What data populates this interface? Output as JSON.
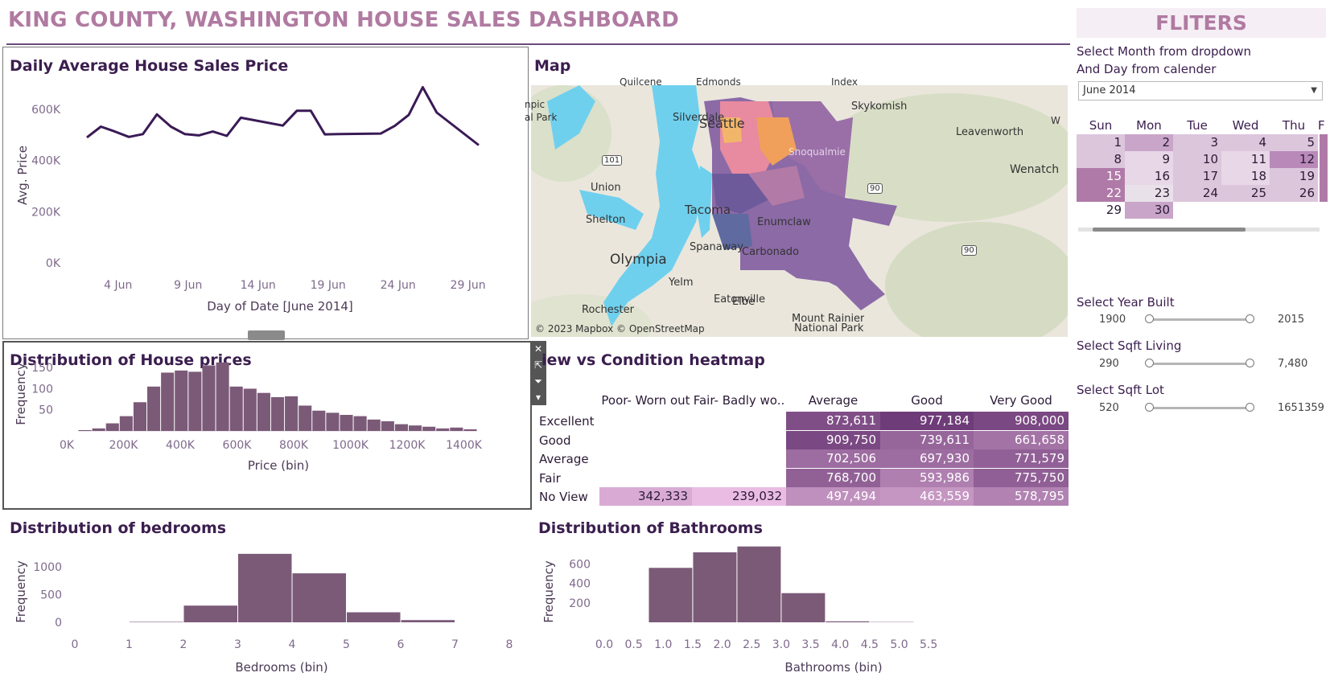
{
  "dashboard_title": "KING COUNTY, WASHINGTON HOUSE SALES DASHBOARD",
  "colors": {
    "accent": "#b07aa1",
    "dark": "#3b1e4f",
    "bar": "#7b5a78",
    "line": "#3a1a56"
  },
  "daily_chart": {
    "title": "Daily Average House Sales Price",
    "ylabel": "Avg. Price",
    "xlabel": "Day of Date [June 2014]",
    "y_ticks": [
      "600K",
      "400K",
      "200K",
      "0K"
    ],
    "x_ticks": [
      "4 Jun",
      "9 Jun",
      "14 Jun",
      "19 Jun",
      "24 Jun",
      "29 Jun"
    ]
  },
  "map": {
    "title": "Map",
    "attribution": "© 2023 Mapbox © OpenStreetMap",
    "places": [
      "Quilcene",
      "Edmonds",
      "Index",
      "Silverdale",
      "Seattle",
      "Skykomish",
      "Leavenworth",
      "Wenatchee",
      "Union",
      "Tacoma",
      "Enumclaw",
      "Shelton",
      "Spanaway",
      "Carbonado",
      "Olympia",
      "Yelm",
      "Eatonville",
      "Rochester",
      "Elbe",
      "Mount Rainier",
      "National Park",
      "npic",
      "al Park",
      "W",
      "101",
      "90",
      "90",
      "Snoqualmie"
    ]
  },
  "price_dist": {
    "title": "Distribution of House prices",
    "ylabel": "Frequency",
    "xlabel": "Price (bin)",
    "y_ticks": [
      "150",
      "100",
      "50"
    ],
    "x_ticks": [
      "0K",
      "200K",
      "400K",
      "600K",
      "800K",
      "1000K",
      "1200K",
      "1400K"
    ]
  },
  "heatmap": {
    "title": "View vs Condition heatmap",
    "title_visible": "iew vs Condition heatmap",
    "columns": [
      "Poor- Worn out",
      "Fair- Badly wo..",
      "Average",
      "Good",
      "Very Good"
    ],
    "rows": [
      {
        "label": "Excellent",
        "values": [
          "",
          "",
          "873,611",
          "977,184",
          "908,000"
        ]
      },
      {
        "label": "Good",
        "values": [
          "",
          "",
          "909,750",
          "739,611",
          "661,658"
        ]
      },
      {
        "label": "Average",
        "values": [
          "",
          "",
          "702,506",
          "697,930",
          "771,579"
        ]
      },
      {
        "label": "Fair",
        "values": [
          "",
          "",
          "768,700",
          "593,986",
          "775,750"
        ]
      },
      {
        "label": "No View",
        "values": [
          "342,333",
          "239,032",
          "497,494",
          "463,559",
          "578,795"
        ]
      }
    ]
  },
  "bedrooms": {
    "title": "Distribution of bedrooms",
    "ylabel": "Frequency",
    "xlabel": "Bedrooms (bin)",
    "y_ticks": [
      "1000",
      "500",
      "0"
    ],
    "x_ticks": [
      "0",
      "1",
      "2",
      "3",
      "4",
      "5",
      "6",
      "7",
      "8"
    ]
  },
  "bathrooms": {
    "title": "Distribution of Bathrooms",
    "ylabel": "Frequency",
    "xlabel": "Bathrooms (bin)",
    "y_ticks": [
      "600",
      "400",
      "200"
    ],
    "x_ticks": [
      "0.0",
      "0.5",
      "1.0",
      "1.5",
      "2.0",
      "2.5",
      "3.0",
      "3.5",
      "4.0",
      "4.5",
      "5.0",
      "5.5"
    ]
  },
  "filters": {
    "title": "FLITERS",
    "instruction_1": "Select Month from dropdown",
    "instruction_2": "And Day from calender",
    "month_value": "June 2014",
    "weekdays": [
      "Sun",
      "Mon",
      "Tue",
      "Wed",
      "Thu",
      "F"
    ],
    "calendar_days": [
      "1",
      "2",
      "3",
      "4",
      "5",
      "8",
      "9",
      "10",
      "11",
      "12",
      "15",
      "16",
      "17",
      "18",
      "19",
      "22",
      "23",
      "24",
      "25",
      "26",
      "29",
      "30"
    ],
    "year_built": {
      "label": "Select Year Built",
      "min": "1900",
      "max": "2015"
    },
    "sqft_living": {
      "label": "Select Sqft Living",
      "min": "290",
      "max": "7,480"
    },
    "sqft_lot": {
      "label": "Select Sqft Lot",
      "min": "520",
      "max": "1651359"
    }
  },
  "chart_data": [
    {
      "type": "line",
      "title": "Daily Average House Sales Price",
      "xlabel": "Day of Date [June 2014]",
      "ylabel": "Avg. Price",
      "x": [
        2,
        3,
        4,
        5,
        6,
        7,
        8,
        9,
        10,
        11,
        12,
        13,
        16,
        17,
        18,
        19,
        20,
        23,
        24,
        25,
        26,
        27,
        30
      ],
      "values": [
        490000,
        532000,
        513000,
        492000,
        503000,
        580000,
        532000,
        503000,
        498000,
        513000,
        496000,
        567000,
        536000,
        594000,
        594000,
        502000,
        503000,
        505000,
        535000,
        578000,
        686000,
        587000,
        460000
      ],
      "ylim": [
        0,
        700000
      ]
    },
    {
      "type": "bar",
      "title": "Distribution of House prices",
      "xlabel": "Price (bin)",
      "ylabel": "Frequency",
      "categories": [
        "50K",
        "100K",
        "150K",
        "200K",
        "250K",
        "300K",
        "350K",
        "400K",
        "450K",
        "500K",
        "550K",
        "600K",
        "650K",
        "700K",
        "750K",
        "800K",
        "850K",
        "900K",
        "950K",
        "1000K",
        "1050K",
        "1100K",
        "1150K",
        "1200K",
        "1250K",
        "1300K",
        "1350K",
        "1400K",
        "1450K"
      ],
      "values": [
        2,
        6,
        18,
        35,
        68,
        105,
        138,
        143,
        140,
        155,
        162,
        105,
        100,
        90,
        80,
        82,
        60,
        48,
        43,
        38,
        35,
        27,
        23,
        16,
        13,
        10,
        6,
        8,
        4
      ]
    },
    {
      "type": "bar",
      "title": "Distribution of bedrooms",
      "xlabel": "Bedrooms (bin)",
      "ylabel": "Frequency",
      "categories": [
        "1",
        "2",
        "3",
        "4",
        "5",
        "6"
      ],
      "values": [
        8,
        300,
        1230,
        880,
        180,
        40
      ]
    },
    {
      "type": "bar",
      "title": "Distribution of Bathrooms",
      "xlabel": "Bathrooms (bin)",
      "ylabel": "Frequency",
      "categories": [
        "0.75",
        "1.5",
        "2.25",
        "3.0",
        "3.75",
        "4.5"
      ],
      "values": [
        560,
        720,
        780,
        300,
        10,
        3
      ]
    }
  ]
}
